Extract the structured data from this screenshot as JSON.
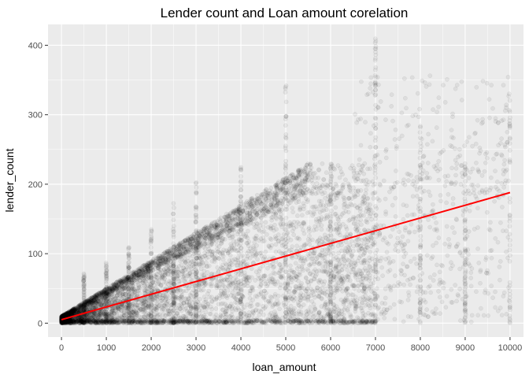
{
  "chart_data": {
    "type": "scatter",
    "title": "Lender count and Loan amount corelation",
    "xlabel": "loan_amount",
    "ylabel": "lender_count",
    "xlim": [
      -300,
      10300
    ],
    "ylim": [
      -20,
      430
    ],
    "x_ticks": [
      0,
      1000,
      2000,
      3000,
      4000,
      5000,
      6000,
      7000,
      8000,
      9000,
      10000
    ],
    "y_ticks": [
      0,
      100,
      200,
      300,
      400
    ],
    "grid": true,
    "legend": "none",
    "point_color": "#000000",
    "point_alpha": 0.06,
    "series": [
      {
        "values": "scatter of many semi-transparent points",
        "x_range": [
          0,
          10000
        ],
        "y_range": [
          0,
          410
        ]
      }
    ],
    "trend_line": {
      "color": "#ff0000",
      "x": [
        0,
        10000
      ],
      "y": [
        5,
        188
      ]
    }
  },
  "panel_background": "#ebebeb",
  "grid_color": "#ffffff"
}
